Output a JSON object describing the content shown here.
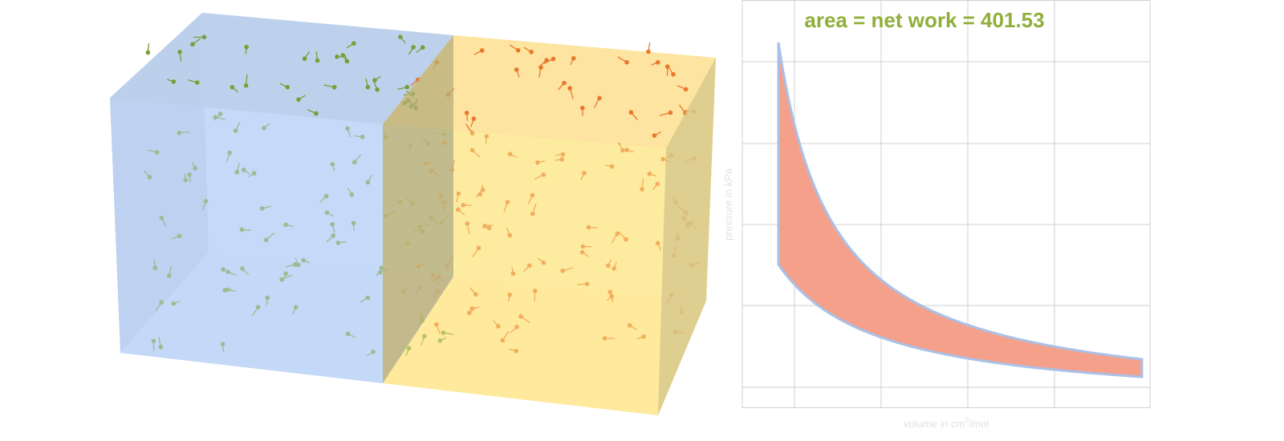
{
  "plot": {
    "title": "area = net work = 401.53",
    "y_label": "pressure in kPa",
    "x_label_parts": [
      "volume in cm",
      "3",
      "/mol"
    ]
  }
}
